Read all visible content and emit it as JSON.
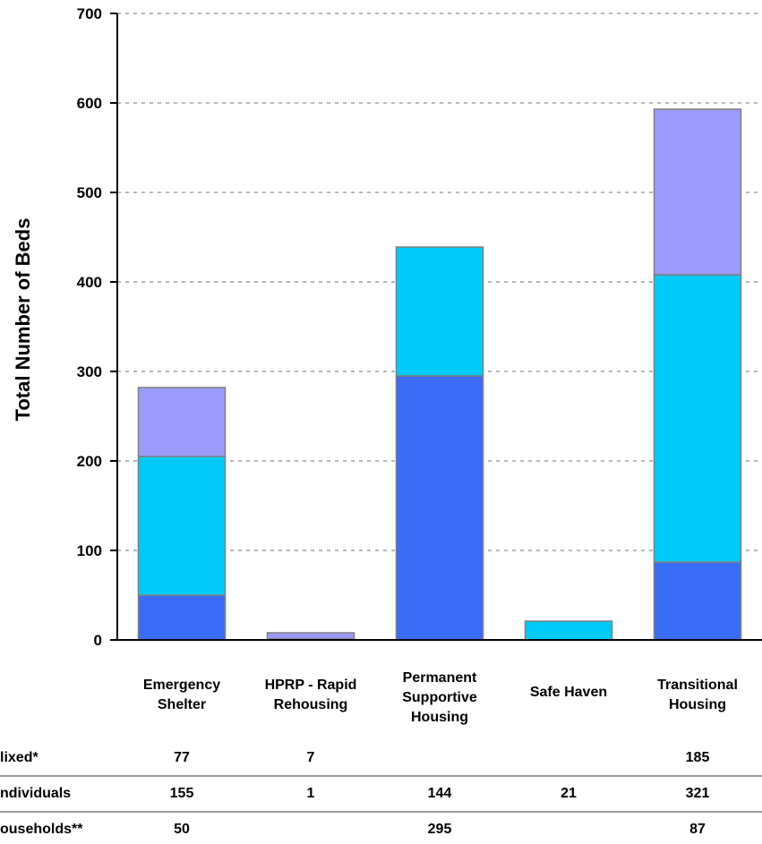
{
  "chart_data": {
    "type": "bar",
    "stacked": true,
    "title": "",
    "xlabel": "",
    "ylabel": "Total Number of Beds",
    "ylim": [
      0,
      700
    ],
    "yticks": [
      "0",
      "100",
      "200",
      "300",
      "400",
      "500",
      "600",
      "700"
    ],
    "grid": true,
    "categories": [
      [
        "Emergency",
        "Shelter"
      ],
      [
        "HPRP - Rapid",
        "Rehousing"
      ],
      [
        "Permanent",
        "Supportive",
        "Housing"
      ],
      [
        "Safe Haven"
      ],
      [
        "Transitional",
        "Housing"
      ]
    ],
    "series": [
      {
        "name": "ouseholds**",
        "color": "#3a6cf8",
        "values": [
          50,
          0,
          295,
          0,
          87
        ]
      },
      {
        "name": "ndividuals",
        "color": "#00cbf8",
        "values": [
          155,
          1,
          144,
          21,
          321
        ]
      },
      {
        "name": "lixed*",
        "color": "#9b9bfb",
        "values": [
          77,
          7,
          0,
          0,
          185
        ]
      }
    ],
    "table": {
      "rows": [
        {
          "label": "lixed*",
          "cells": [
            "77",
            "7",
            "",
            "",
            "185"
          ]
        },
        {
          "label": "ndividuals",
          "cells": [
            "155",
            "1",
            "144",
            "21",
            "321"
          ]
        },
        {
          "label": "ouseholds**",
          "cells": [
            "50",
            "",
            "295",
            "",
            "87"
          ]
        }
      ]
    }
  }
}
